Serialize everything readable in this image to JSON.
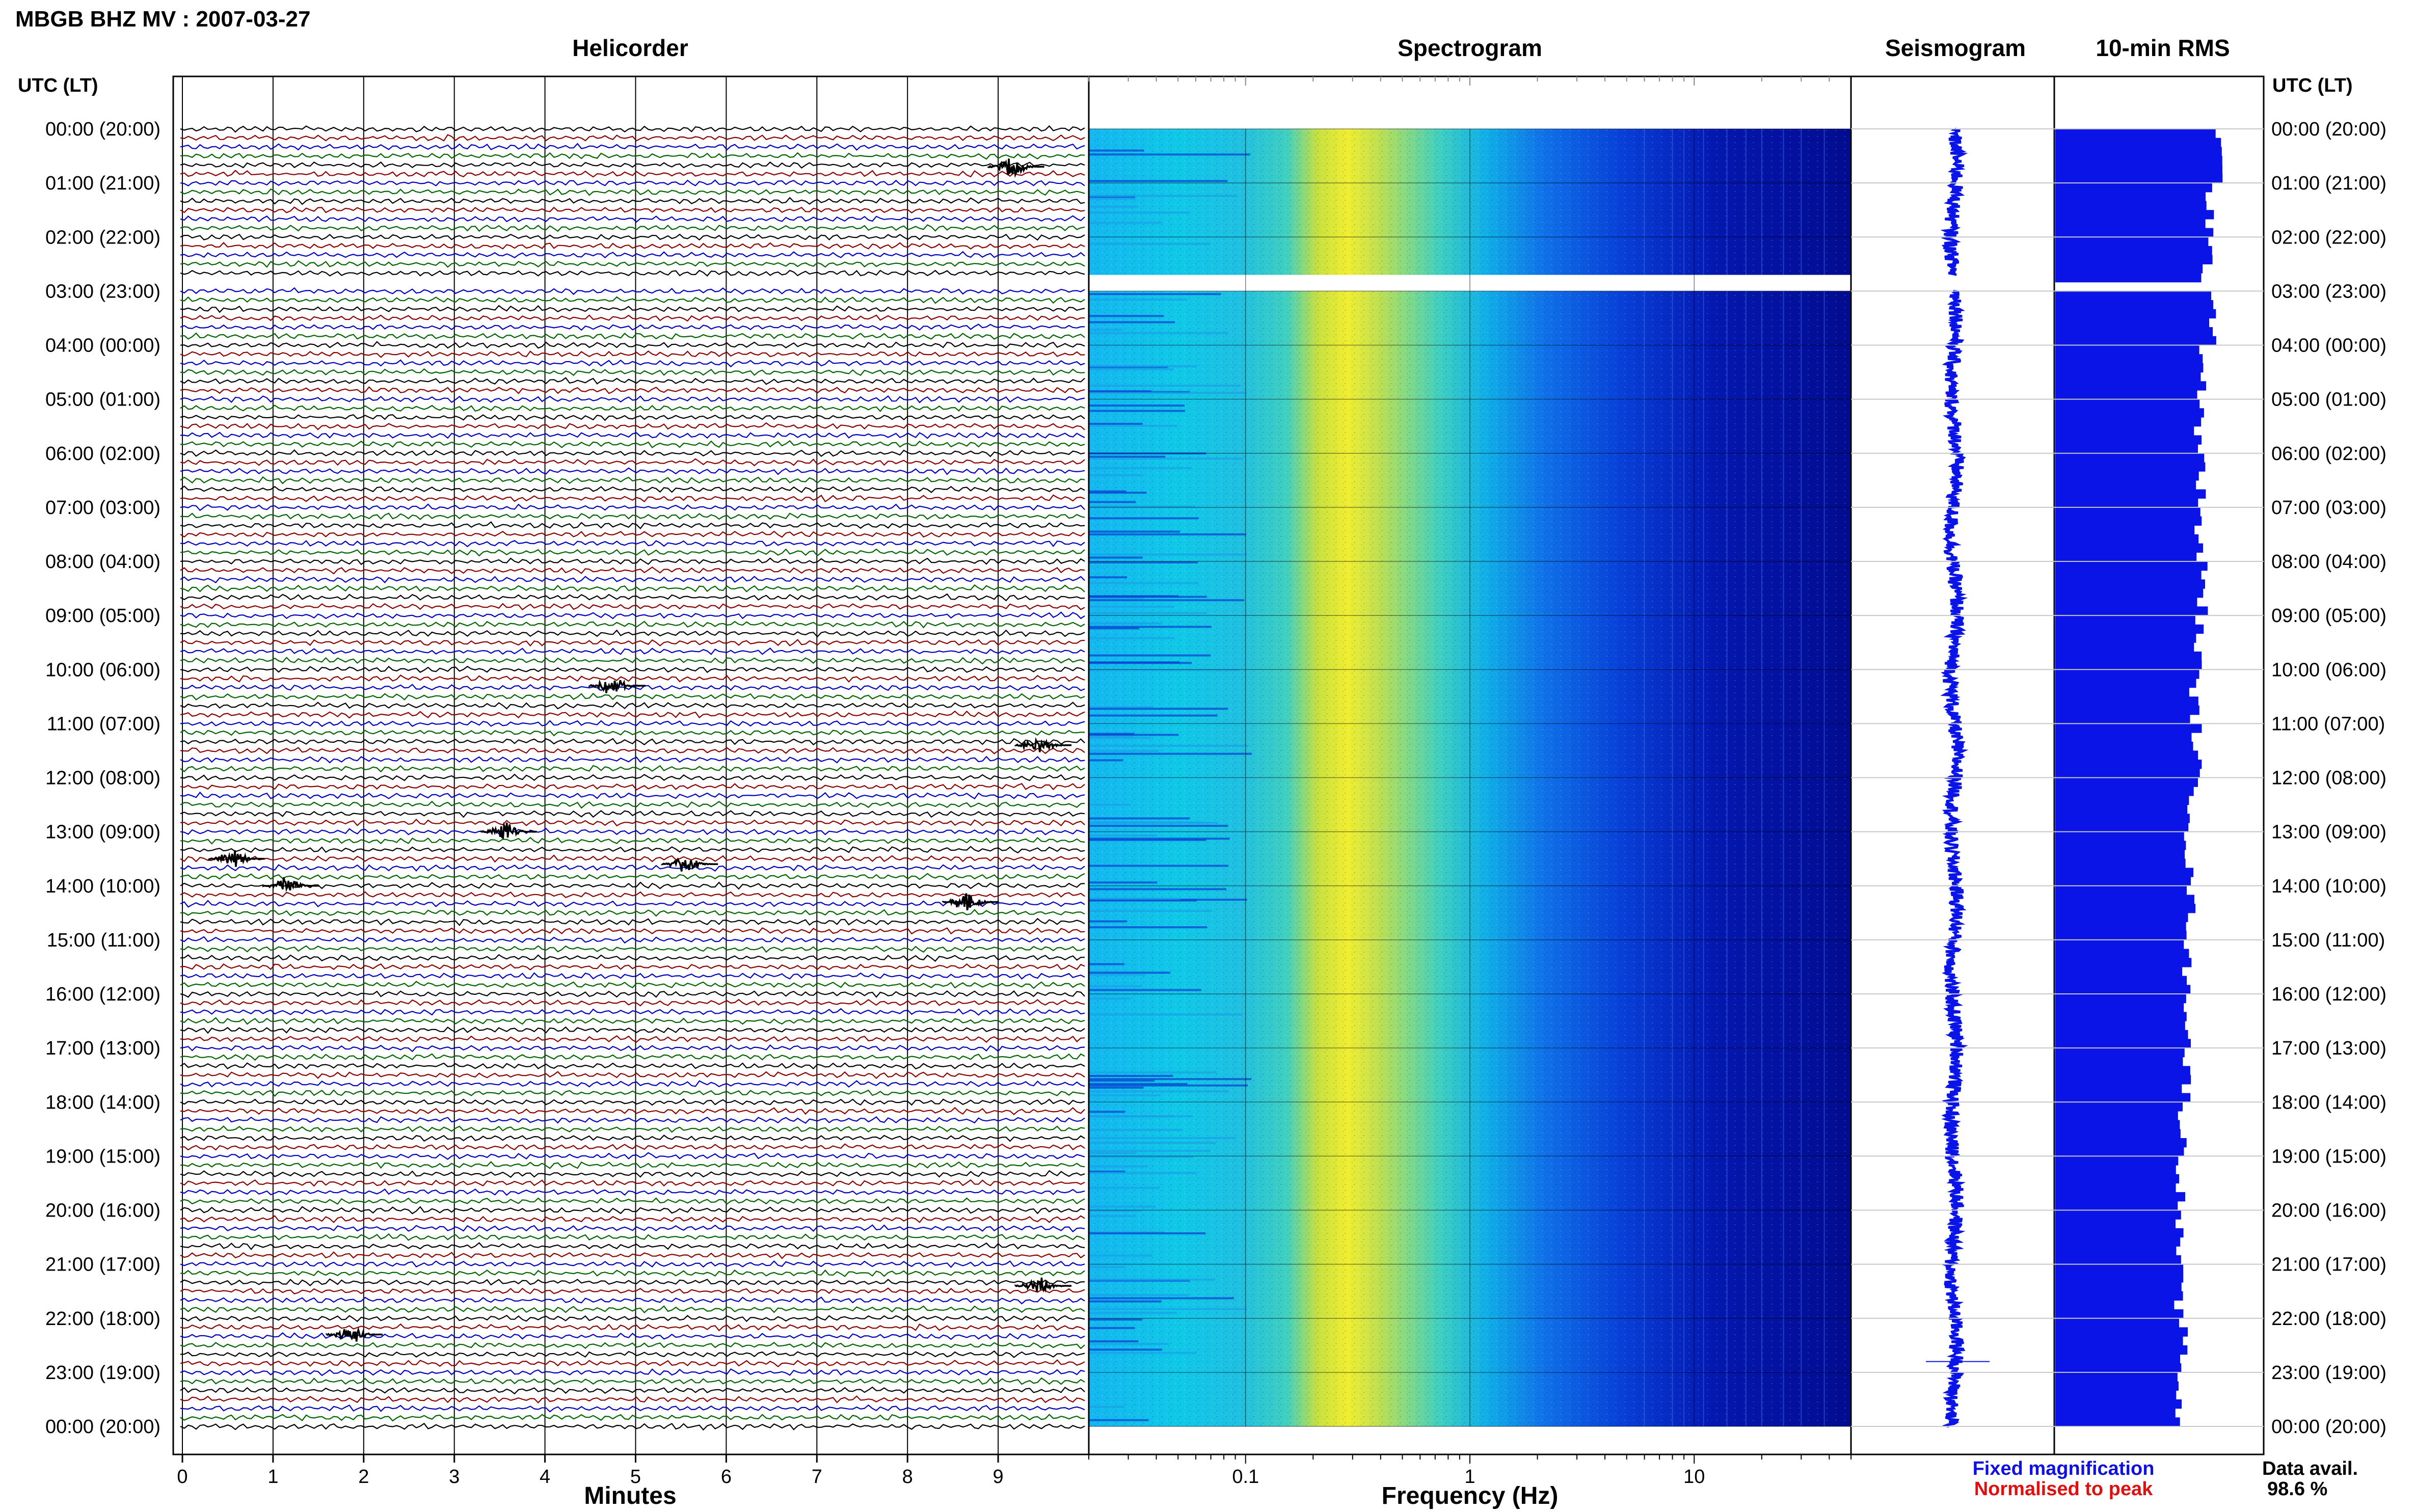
{
  "header": {
    "title": "MBGB BHZ MV : 2007-03-27",
    "utc_label_left": "UTC (LT)",
    "utc_label_right": "UTC (LT)"
  },
  "panels": {
    "helicorder": {
      "title": "Helicorder",
      "xlabel": "Minutes"
    },
    "spectrogram": {
      "title": "Spectrogram",
      "xlabel": "Frequency (Hz)"
    },
    "seismogram": {
      "title": "Seismogram"
    },
    "rms": {
      "title": "10-min RMS"
    }
  },
  "legend": {
    "fixed": "Fixed magnification",
    "normalised": "Normalised to peak",
    "fixed_color": "#1010e0",
    "normalised_color": "#e01010"
  },
  "availability": {
    "label": "Data avail.",
    "value": "98.6 %"
  },
  "colors": {
    "trace_cycle": [
      "#000000",
      "#8b0000",
      "#0000c0",
      "#006400"
    ],
    "rms_fill": "#0a14e6",
    "seismogram": "#0a14e6"
  },
  "chart_data": [
    {
      "type": "line",
      "name": "helicorder",
      "title": "Helicorder",
      "xlabel": "Minutes",
      "xlim": [
        0,
        10
      ],
      "xticks": [
        0,
        1,
        2,
        3,
        4,
        5,
        6,
        7,
        8,
        9
      ],
      "y_hours": [
        "00:00 (20:00)",
        "01:00 (21:00)",
        "02:00 (22:00)",
        "03:00 (23:00)",
        "04:00 (00:00)",
        "05:00 (01:00)",
        "06:00 (02:00)",
        "07:00 (03:00)",
        "08:00 (04:00)",
        "09:00 (05:00)",
        "10:00 (06:00)",
        "11:00 (07:00)",
        "12:00 (08:00)",
        "13:00 (09:00)",
        "14:00 (10:00)",
        "15:00 (11:00)",
        "16:00 (12:00)",
        "17:00 (13:00)",
        "18:00 (14:00)",
        "19:00 (15:00)",
        "20:00 (16:00)",
        "21:00 (17:00)",
        "22:00 (18:00)",
        "23:00 (19:00)",
        "00:00 (20:00)"
      ],
      "traces_per_hour": 6,
      "events": [
        {
          "hour": 0.7,
          "minute": 9.2
        },
        {
          "hour": 10.3,
          "minute": 4.8
        },
        {
          "hour": 11.4,
          "minute": 9.5
        },
        {
          "hour": 13.0,
          "minute": 3.6
        },
        {
          "hour": 13.5,
          "minute": 0.6
        },
        {
          "hour": 13.6,
          "minute": 5.6
        },
        {
          "hour": 14.0,
          "minute": 1.2
        },
        {
          "hour": 14.3,
          "minute": 8.7
        },
        {
          "hour": 21.4,
          "minute": 9.5
        },
        {
          "hour": 22.3,
          "minute": 1.9
        }
      ],
      "gap": {
        "start_hour": 2.7,
        "end_hour": 3.0
      }
    },
    {
      "type": "heatmap",
      "name": "spectrogram",
      "title": "Spectrogram",
      "xlabel": "Frequency (Hz)",
      "xscale": "log",
      "xlim": [
        0.02,
        50
      ],
      "xticks": [
        0.1,
        1,
        10
      ],
      "peak_frequency_hz": 0.25,
      "gap": {
        "start_hour": 2.7,
        "end_hour": 3.0
      }
    },
    {
      "type": "line",
      "name": "seismogram",
      "title": "Seismogram",
      "gap": {
        "start_hour": 2.7,
        "end_hour": 3.0
      },
      "spike_hour": 22.8
    },
    {
      "type": "bar",
      "name": "10-min RMS",
      "title": "10-min RMS",
      "orientation": "horizontal",
      "bins_per_hour": 6,
      "gap": {
        "start_hour": 2.7,
        "end_hour": 3.0
      },
      "relative_values_hourly": [
        0.82,
        0.78,
        0.76,
        0.8,
        0.74,
        0.72,
        0.73,
        0.72,
        0.74,
        0.72,
        0.7,
        0.71,
        0.69,
        0.67,
        0.68,
        0.66,
        0.67,
        0.66,
        0.64,
        0.63,
        0.62,
        0.62,
        0.64,
        0.62
      ]
    }
  ]
}
